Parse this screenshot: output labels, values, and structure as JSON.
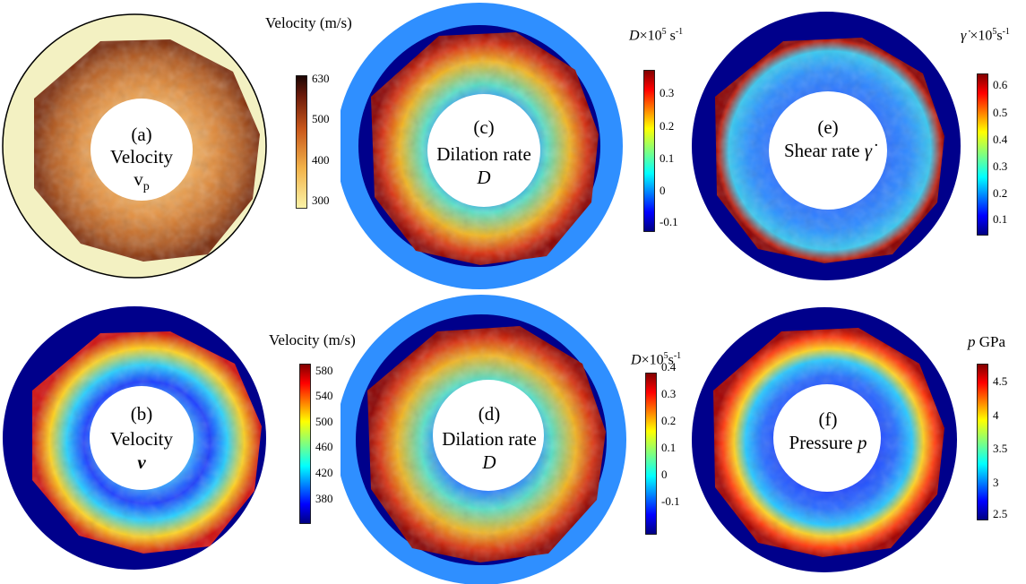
{
  "panels": {
    "a": {
      "tag": "(a)",
      "title": "Velocity",
      "symbol": "v",
      "sub": "p",
      "cbar_title": "Velocity (m/s)",
      "ticks": [
        "630",
        "500",
        "400",
        "300"
      ]
    },
    "b": {
      "tag": "(b)",
      "title": "Velocity",
      "symbol": "v",
      "cbar_title": "Velocity (m/s)",
      "ticks": [
        "580",
        "540",
        "500",
        "460",
        "420",
        "380"
      ]
    },
    "c": {
      "tag": "(c)",
      "title": "Dilation rate",
      "symbol": "D",
      "cbar_sym": "D",
      "cbar_unit": "×10",
      "cbar_exp": "5",
      "cbar_tail": " s",
      "cbar_exp2": "-1",
      "ticks": [
        "0.3",
        "0.2",
        "0.1",
        "0",
        "-0.1"
      ]
    },
    "d": {
      "tag": "(d)",
      "title": "Dilation rate",
      "symbol": "D",
      "cbar_sym": "D",
      "cbar_unit": "×10",
      "cbar_exp": "5",
      "cbar_tail": "s",
      "cbar_exp2": "-1",
      "ticks": [
        "0.4",
        "0.3",
        "0.2",
        "0.1",
        "0",
        "-0.1"
      ]
    },
    "e": {
      "tag": "(e)",
      "title": "Shear rate",
      "symbol": "γ̇",
      "cbar_sym": "γ̇",
      "cbar_unit": " ×10",
      "cbar_exp": "5",
      "cbar_tail": "s",
      "cbar_exp2": "-1",
      "ticks": [
        "0.6",
        "0.5",
        "0.4",
        "0.3",
        "0.2",
        "0.1"
      ]
    },
    "f": {
      "tag": "(f)",
      "title": "Pressure",
      "symbol": "p",
      "cbar_sym": "p",
      "cbar_tail": " GPa",
      "ticks": [
        "4.5",
        "4",
        "3.5",
        "3",
        "2.5"
      ]
    }
  },
  "colors": {
    "outer_navy": "#00008b",
    "outer_light": "#2f8fff",
    "outer_cream": "#f3f1c2"
  }
}
